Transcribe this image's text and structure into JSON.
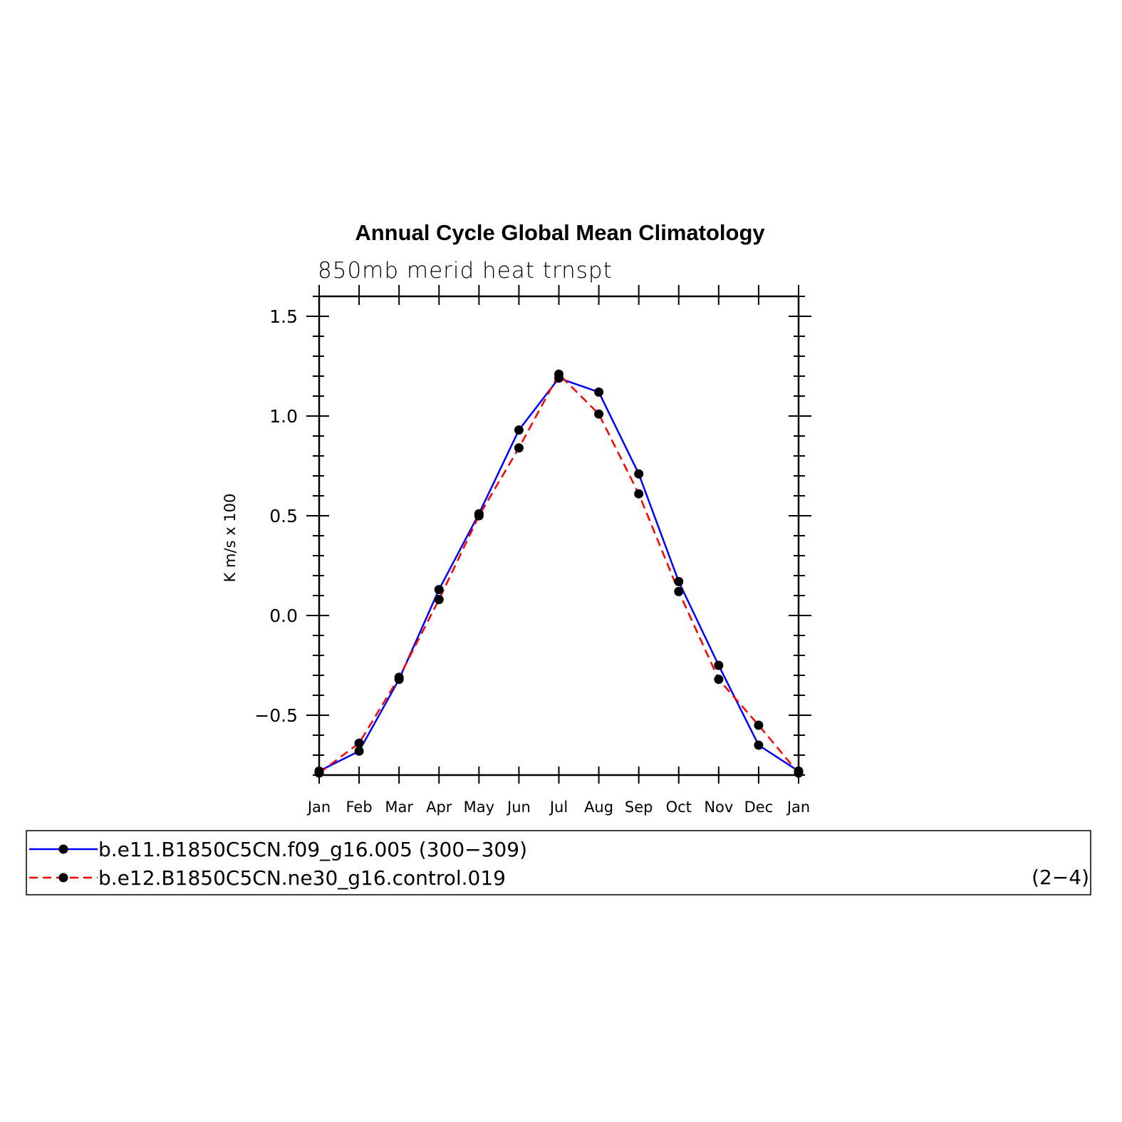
{
  "chart_data": {
    "type": "line",
    "title": "Annual Cycle Global Mean Climatology",
    "subtitle": "850mb merid heat trnspt",
    "ylabel": "K m/s x 100",
    "xlabel": "",
    "categories": [
      "Jan",
      "Feb",
      "Mar",
      "Apr",
      "May",
      "Jun",
      "Jul",
      "Aug",
      "Sep",
      "Oct",
      "Nov",
      "Dec",
      "Jan"
    ],
    "ylim": [
      -0.8,
      1.6
    ],
    "yticks": [
      -0.5,
      0.0,
      0.5,
      1.0,
      1.5
    ],
    "ytick_labels": [
      "−0.5",
      "0.0",
      "0.5",
      "1.0",
      "1.5"
    ],
    "grid": false,
    "legend_placement": "bottom",
    "series": [
      {
        "name": "b.e11.B1850C5CN.f09_g16.005 (300−309)",
        "color": "#0000ff",
        "dash": "solid",
        "values": [
          -0.78,
          -0.68,
          -0.32,
          0.13,
          0.51,
          0.93,
          1.19,
          1.12,
          0.71,
          0.17,
          -0.25,
          -0.65,
          -0.78
        ]
      },
      {
        "name": "b.e12.B1850C5CN.ne30_g16.control.019",
        "color": "#ff0000",
        "dash": "dashed",
        "values": [
          -0.79,
          -0.64,
          -0.31,
          0.08,
          0.5,
          0.84,
          1.21,
          1.01,
          0.61,
          0.12,
          -0.32,
          -0.55,
          -0.79
        ]
      }
    ],
    "corner_label": "(2−4)"
  }
}
